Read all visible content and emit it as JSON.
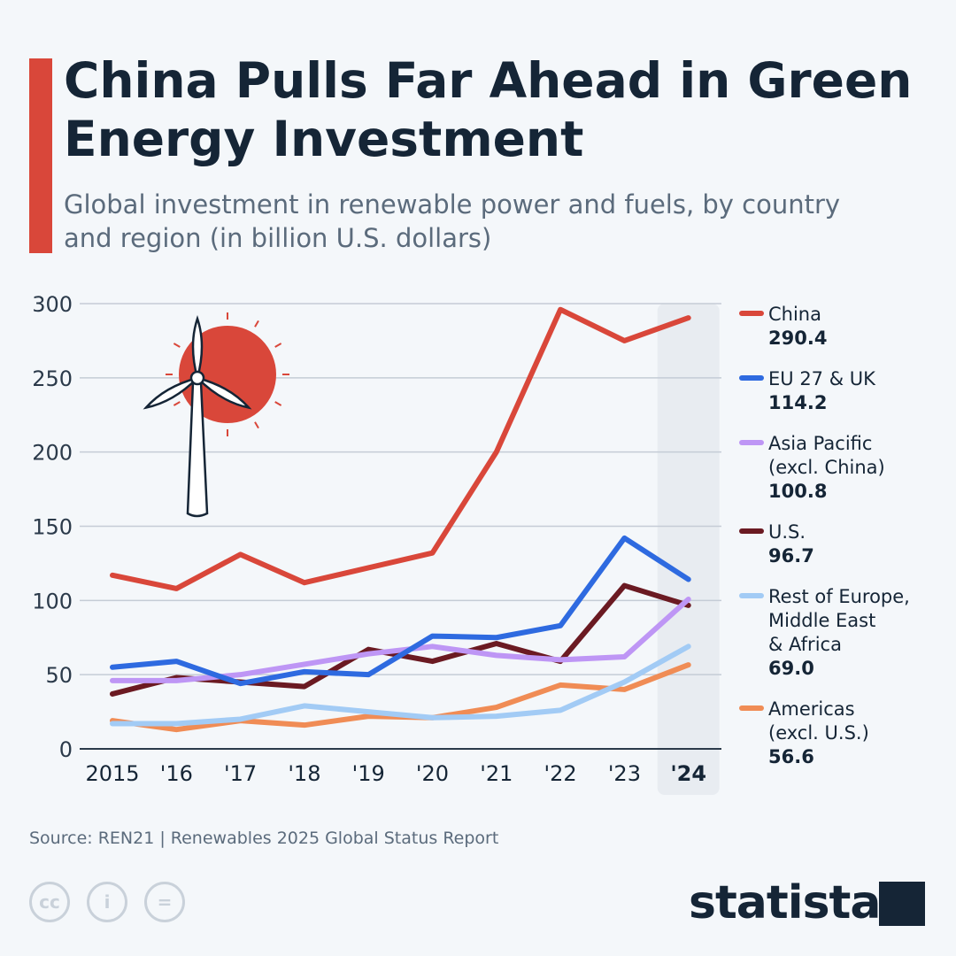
{
  "header": {
    "title": "China Pulls Far Ahead in Green Energy Investment",
    "subtitle": "Global investment in renewable power and fuels, by country and region (in billion U.S. dollars)"
  },
  "footer": {
    "source": "Source: REN21 | Renewables 2025 Global Status Report",
    "brand": "statista"
  },
  "chart_data": {
    "type": "line",
    "title": "China Pulls Far Ahead in Green Energy Investment",
    "ylim": [
      0,
      300
    ],
    "yticks": [
      0,
      50,
      100,
      150,
      200,
      250,
      300
    ],
    "categories": [
      "2015",
      "'16",
      "'17",
      "'18",
      "'19",
      "'20",
      "'21",
      "'22",
      "'23",
      "'24"
    ],
    "grid": true,
    "legend_placement": "right",
    "highlight_category": "'24",
    "series": [
      {
        "name": "China",
        "label": "290.4",
        "color": "#d9473a",
        "values": [
          117,
          108,
          131,
          112,
          122,
          132,
          200,
          296,
          275,
          290.4
        ]
      },
      {
        "name": "EU 27 & UK",
        "label": "114.2",
        "color": "#2e6ae0",
        "values": [
          55,
          59,
          44,
          52,
          50,
          76,
          75,
          83,
          142,
          114.2
        ]
      },
      {
        "name": "Asia Pacific (excl. China)",
        "label": "100.8",
        "color": "#be96f5",
        "values": [
          46,
          46,
          50,
          57,
          64,
          69,
          63,
          60,
          62,
          100.8
        ]
      },
      {
        "name": "U.S.",
        "label": "96.7",
        "color": "#6b1a22",
        "values": [
          37,
          48,
          45,
          42,
          67,
          59,
          71,
          59,
          110,
          96.7
        ]
      },
      {
        "name": "Rest of Europe, Middle East & Africa",
        "label": "69.0",
        "color": "#a2cbf5",
        "values": [
          17,
          17,
          20,
          29,
          25,
          21,
          22,
          26,
          45,
          69.0
        ]
      },
      {
        "name": "Americas (excl. U.S.)",
        "label": "56.6",
        "color": "#f08c55",
        "values": [
          19,
          13,
          19,
          16,
          22,
          21,
          28,
          43,
          40,
          56.6
        ]
      }
    ],
    "legend_lines": [
      [
        "China"
      ],
      [
        "EU 27 & UK"
      ],
      [
        "Asia Pacific",
        "(excl. China)"
      ],
      [
        "U.S."
      ],
      [
        "Rest of Europe,",
        "Middle East",
        "& Africa"
      ],
      [
        "Americas",
        "(excl. U.S.)"
      ]
    ]
  }
}
